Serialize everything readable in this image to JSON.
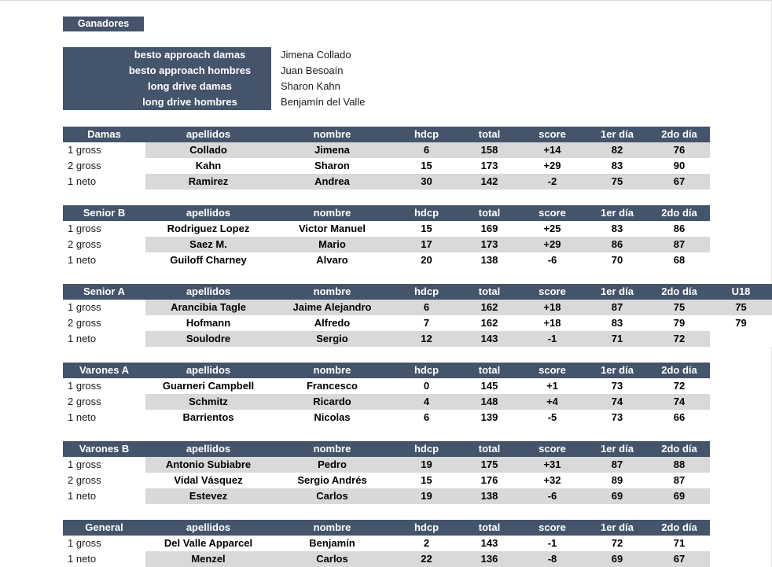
{
  "ganadores_label": "Ganadores",
  "winners": {
    "items": [
      {
        "label": "besto approach damas",
        "name": "Jimena Collado"
      },
      {
        "label": "besto approach hombres",
        "name": "Juan Besoaín"
      },
      {
        "label": "long drive damas",
        "name": "Sharon Kahn"
      },
      {
        "label": "long drive hombres",
        "name": "Benjamín del Valle"
      }
    ]
  },
  "columns": {
    "labels": [
      "apellidos",
      "nombre",
      "hdcp",
      "total",
      "score",
      "1er día",
      "2do día"
    ],
    "u18_label": "U18"
  },
  "colors": {
    "header_bg": "#44546A",
    "band_bg": "#D9D9D9"
  },
  "tables": [
    {
      "category": "Damas",
      "has_u18": false,
      "rows": [
        {
          "label": "1 gross",
          "shaded": true,
          "apellidos": "Collado",
          "nombre": "Jimena",
          "hdcp": "6",
          "total": "158",
          "score": "+14",
          "dia1": "82",
          "dia2": "76"
        },
        {
          "label": "2 gross",
          "shaded": false,
          "apellidos": "Kahn",
          "nombre": "Sharon",
          "hdcp": "15",
          "total": "173",
          "score": "+29",
          "dia1": "83",
          "dia2": "90"
        },
        {
          "label": "1 neto",
          "shaded": true,
          "apellidos": "Ramirez",
          "nombre": "Andrea",
          "hdcp": "30",
          "total": "142",
          "score": "-2",
          "dia1": "75",
          "dia2": "67"
        }
      ]
    },
    {
      "category": "Senior B",
      "has_u18": false,
      "rows": [
        {
          "label": "1 gross",
          "shaded": false,
          "apellidos": "Rodriguez Lopez",
          "nombre": "Victor Manuel",
          "hdcp": "15",
          "total": "169",
          "score": "+25",
          "dia1": "83",
          "dia2": "86"
        },
        {
          "label": "2 gross",
          "shaded": true,
          "apellidos": "Saez M.",
          "nombre": "Mario",
          "hdcp": "17",
          "total": "173",
          "score": "+29",
          "dia1": "86",
          "dia2": "87"
        },
        {
          "label": "1 neto",
          "shaded": false,
          "apellidos": "Guiloff Charney",
          "nombre": "Alvaro",
          "hdcp": "20",
          "total": "138",
          "score": "-6",
          "dia1": "70",
          "dia2": "68"
        }
      ]
    },
    {
      "category": "Senior A",
      "has_u18": true,
      "rows": [
        {
          "label": "1 gross",
          "shaded": true,
          "apellidos": "Arancibia Tagle",
          "nombre": "Jaime Alejandro",
          "hdcp": "6",
          "total": "162",
          "score": "+18",
          "dia1": "87",
          "dia2": "75",
          "u18": "75",
          "u18_shaded": true
        },
        {
          "label": "2 gross",
          "shaded": false,
          "apellidos": "Hofmann",
          "nombre": "Alfredo",
          "hdcp": "7",
          "total": "162",
          "score": "+18",
          "dia1": "83",
          "dia2": "79",
          "u18": "79",
          "u18_shaded": false
        },
        {
          "label": "1 neto",
          "shaded": true,
          "apellidos": "Soulodre",
          "nombre": "Sergio",
          "hdcp": "12",
          "total": "143",
          "score": "-1",
          "dia1": "71",
          "dia2": "72",
          "u18": "",
          "u18_shaded": false
        }
      ]
    },
    {
      "category": "Varones A",
      "has_u18": false,
      "rows": [
        {
          "label": "1 gross",
          "shaded": false,
          "apellidos": "Guarneri Campbell",
          "nombre": "Francesco",
          "hdcp": "0",
          "total": "145",
          "score": "+1",
          "dia1": "73",
          "dia2": "72"
        },
        {
          "label": "2 gross",
          "shaded": true,
          "apellidos": "Schmitz",
          "nombre": "Ricardo",
          "hdcp": "4",
          "total": "148",
          "score": "+4",
          "dia1": "74",
          "dia2": "74"
        },
        {
          "label": "1 neto",
          "shaded": false,
          "apellidos": "Barrientos",
          "nombre": "Nicolas",
          "hdcp": "6",
          "total": "139",
          "score": "-5",
          "dia1": "73",
          "dia2": "66"
        }
      ]
    },
    {
      "category": "Varones B",
      "has_u18": false,
      "rows": [
        {
          "label": "1 gross",
          "shaded": true,
          "apellidos": "Antonio Subiabre",
          "nombre": "Pedro",
          "hdcp": "19",
          "total": "175",
          "score": "+31",
          "dia1": "87",
          "dia2": "88"
        },
        {
          "label": "2 gross",
          "shaded": false,
          "apellidos": "Vidal Vásquez",
          "nombre": "Sergio Andrés",
          "hdcp": "15",
          "total": "176",
          "score": "+32",
          "dia1": "89",
          "dia2": "87"
        },
        {
          "label": "1 neto",
          "shaded": true,
          "apellidos": "Estevez",
          "nombre": "Carlos",
          "hdcp": "19",
          "total": "138",
          "score": "-6",
          "dia1": "69",
          "dia2": "69"
        }
      ]
    },
    {
      "category": "General",
      "has_u18": false,
      "rows": [
        {
          "label": "1 gross",
          "shaded": false,
          "apellidos": "Del Valle Apparcel",
          "nombre": "Benjamín",
          "hdcp": "2",
          "total": "143",
          "score": "-1",
          "dia1": "72",
          "dia2": "71"
        },
        {
          "label": "1 neto",
          "shaded": true,
          "apellidos": "Menzel",
          "nombre": "Carlos",
          "hdcp": "22",
          "total": "136",
          "score": "-8",
          "dia1": "69",
          "dia2": "67"
        }
      ]
    }
  ]
}
